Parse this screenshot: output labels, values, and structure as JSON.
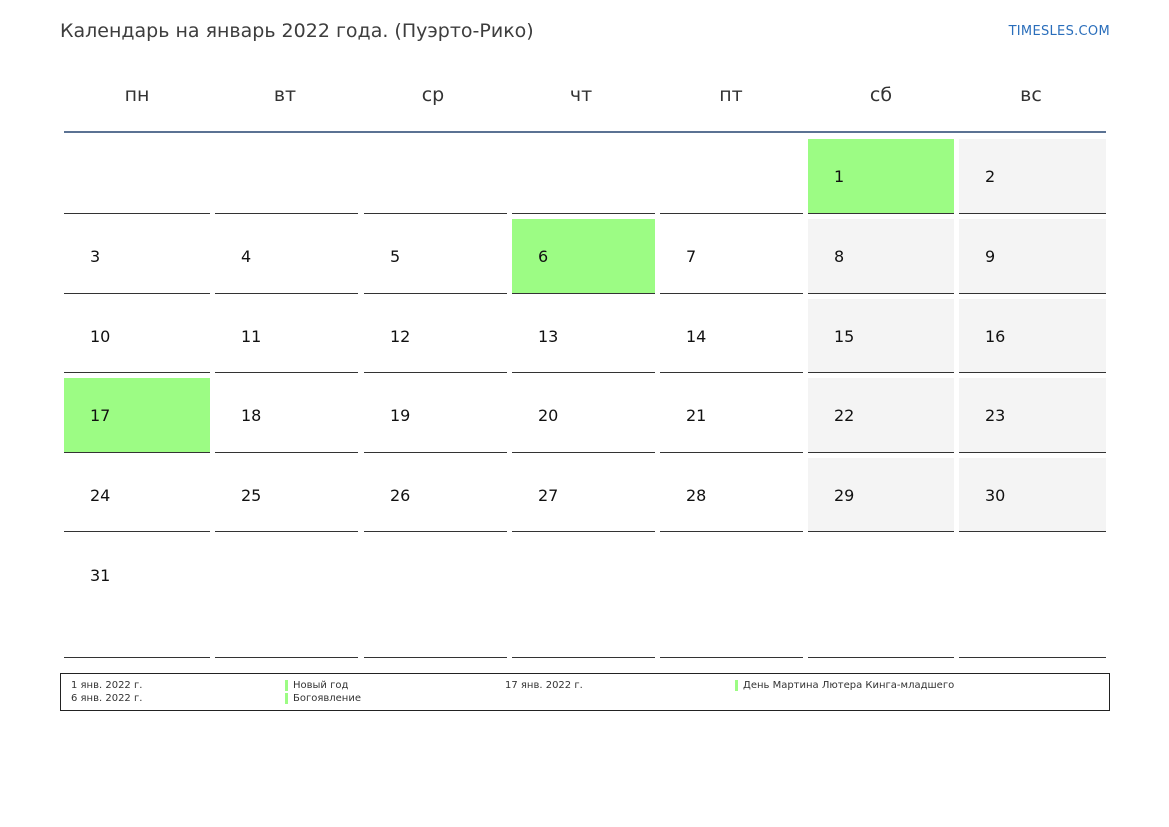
{
  "header": {
    "title": "Календарь на январь 2022 года. (Пуэрто-Рико)",
    "brand": "TIMESLES.COM"
  },
  "colors": {
    "holiday": "#9cfc84",
    "weekend": "#f4f4f4",
    "header_rule": "#5b7293",
    "brand": "#2a6ebb"
  },
  "weekdays": [
    "пн",
    "вт",
    "ср",
    "чт",
    "пт",
    "сб",
    "вс"
  ],
  "month": {
    "weeks": [
      [
        "",
        "",
        "",
        "",
        "",
        "1",
        "2"
      ],
      [
        "3",
        "4",
        "5",
        "6",
        "7",
        "8",
        "9"
      ],
      [
        "10",
        "11",
        "12",
        "13",
        "14",
        "15",
        "16"
      ],
      [
        "17",
        "18",
        "19",
        "20",
        "21",
        "22",
        "23"
      ],
      [
        "24",
        "25",
        "26",
        "27",
        "28",
        "29",
        "30"
      ],
      [
        "31",
        "",
        "",
        "",
        "",
        "",
        ""
      ]
    ],
    "holiday_days": [
      "1",
      "6",
      "17"
    ]
  },
  "legend": {
    "entries": [
      {
        "date": "1 янв. 2022 г.",
        "name": "Новый год"
      },
      {
        "date": "6 янв. 2022 г.",
        "name": "Богоявление"
      },
      {
        "date": "17 янв. 2022 г.",
        "name": "День Мартина Лютера Кинга-младшего"
      }
    ]
  }
}
